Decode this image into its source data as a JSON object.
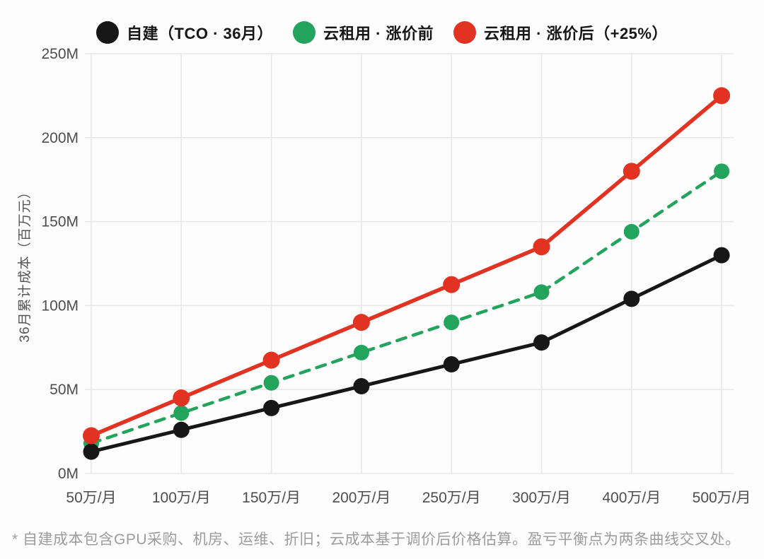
{
  "chart_data": {
    "type": "line",
    "title": "",
    "categories": [
      "50万/月",
      "100万/月",
      "150万/月",
      "200万/月",
      "250万/月",
      "300万/月",
      "400万/月",
      "500万/月"
    ],
    "xlabel": "",
    "ylabel": "36月累计成本（百万元）",
    "ylim": [
      0,
      250
    ],
    "yticks": [
      0,
      50,
      100,
      150,
      200,
      250
    ],
    "ytick_labels": [
      "0M",
      "50M",
      "100M",
      "150M",
      "200M",
      "250M"
    ],
    "grid": true,
    "legend_position": "top",
    "series": [
      {
        "name": "自建（TCO · 36月）",
        "color": "#171717",
        "line_style": "solid",
        "values": [
          13,
          26,
          39,
          52,
          65,
          78,
          104,
          130
        ]
      },
      {
        "name": "云租用 · 涨价前",
        "color": "#23a45c",
        "line_style": "dashed",
        "values": [
          18,
          36,
          54,
          72,
          90,
          108,
          144,
          180
        ]
      },
      {
        "name": "云租用 · 涨价后（+25%）",
        "color": "#e23322",
        "line_style": "solid",
        "values": [
          22.5,
          45,
          67.5,
          90,
          112.5,
          135,
          180,
          225
        ]
      }
    ],
    "footnote": "* 自建成本包含GPU采购、机房、运维、折旧；云成本基于调价后价格估算。盈亏平衡点为两条曲线交叉处。",
    "colors": {
      "grid": "#e8e8e8",
      "tick_text": "#4d4d4d",
      "axis_title_text": "#555555",
      "footnote_text": "#9c9c9c",
      "background": "#fdfdfd"
    }
  }
}
